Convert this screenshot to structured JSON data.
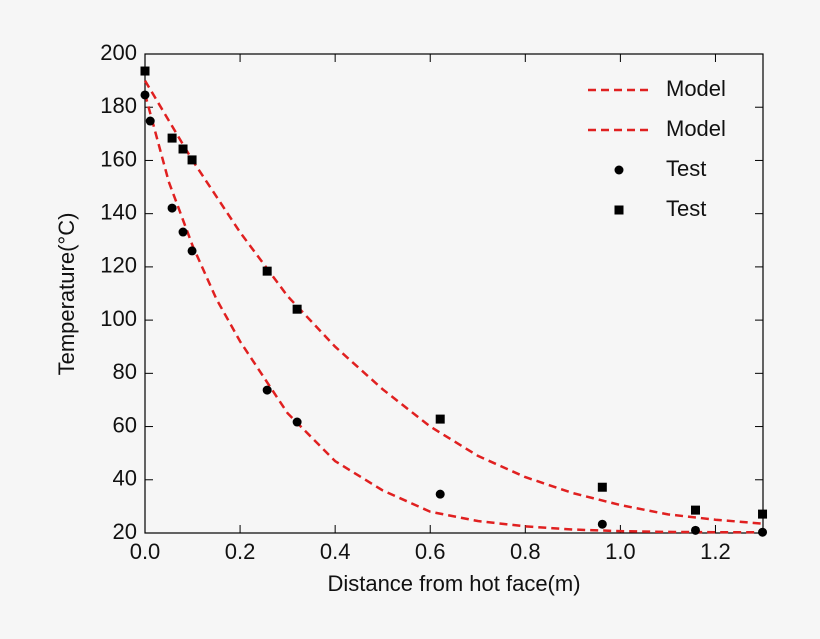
{
  "chart_data": {
    "type": "line-scatter",
    "xlabel": "Distance from hot face(m)",
    "ylabel": "Temperature(°C)",
    "xlim": [
      0,
      1.3
    ],
    "ylim": [
      20,
      200
    ],
    "xticks": [
      {
        "value": 0,
        "label": "0.0"
      },
      0.2,
      0.4,
      0.6,
      0.8,
      {
        "value": 1,
        "label": "1.0"
      },
      1.2
    ],
    "yticks": [
      20,
      40,
      60,
      80,
      100,
      120,
      140,
      160,
      180,
      200
    ],
    "legend": "upper right",
    "series": [
      {
        "name": "Model",
        "kind": "dashed-line",
        "color": "#e02020",
        "x": [
          0,
          0.05,
          0.1,
          0.15,
          0.2,
          0.3,
          0.4,
          0.5,
          0.6,
          0.7,
          0.8,
          0.9,
          1.0,
          1.1,
          1.2,
          1.3
        ],
        "values": [
          185,
          152,
          128,
          108,
          92,
          65,
          47,
          36,
          28,
          24.5,
          22.5,
          21.3,
          20.7,
          20.4,
          20.3,
          20.3
        ]
      },
      {
        "name": "Model",
        "kind": "dashed-line",
        "color": "#e02020",
        "x": [
          0,
          0.1,
          0.2,
          0.3,
          0.4,
          0.5,
          0.6,
          0.7,
          0.8,
          0.9,
          1.0,
          1.1,
          1.2,
          1.3
        ],
        "values": [
          190,
          160,
          133,
          109,
          90,
          74,
          60,
          49,
          41,
          35,
          30.5,
          27,
          25,
          23.5
        ]
      },
      {
        "name": "Test",
        "kind": "circle",
        "color": "#000000",
        "x": [
          0,
          0.011,
          0.057,
          0.08,
          0.099,
          0.257,
          0.32,
          0.621,
          0.962,
          1.158,
          1.299
        ],
        "values": [
          184.6,
          174.8,
          142.1,
          133.1,
          126,
          73.7,
          61.7,
          34.6,
          23.3,
          21,
          20.3
        ]
      },
      {
        "name": "Test",
        "kind": "square",
        "color": "#000000",
        "x": [
          0,
          0.057,
          0.08,
          0.099,
          0.257,
          0.32,
          0.621,
          0.962,
          1.158,
          1.299
        ],
        "values": [
          193.6,
          168.4,
          164.3,
          160.2,
          118.4,
          104.1,
          62.8,
          37.2,
          28.6,
          27.1
        ]
      }
    ]
  }
}
